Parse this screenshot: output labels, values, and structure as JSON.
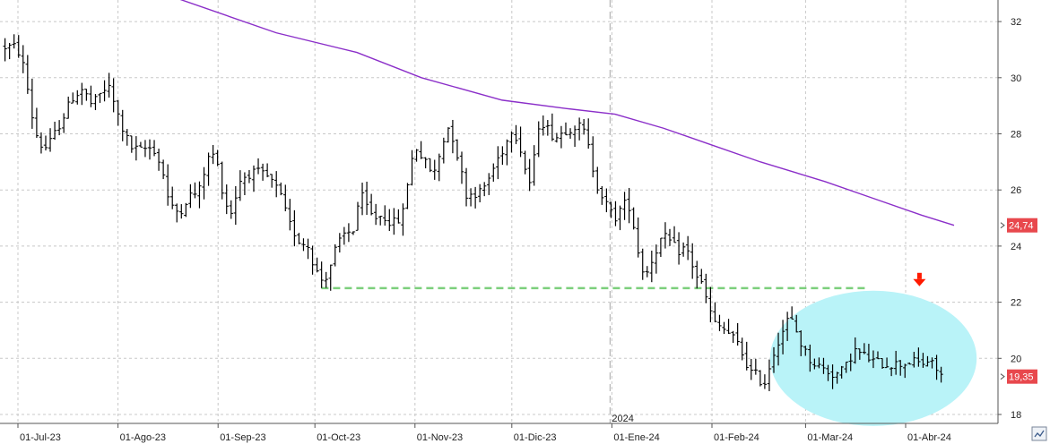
{
  "chart_data": {
    "type": "bar",
    "subtype": "ohlc-price-bars",
    "title": "",
    "xlabel": "",
    "ylabel": "",
    "ylim": [
      17.6,
      33.5
    ],
    "y_ticks": [
      18,
      20,
      22,
      24,
      26,
      28,
      30,
      32
    ],
    "x_ticks": [
      {
        "day": 0,
        "label": "01-Jul-23"
      },
      {
        "day": 31,
        "label": "01-Ago-23"
      },
      {
        "day": 62,
        "label": "01-Sep-23"
      },
      {
        "day": 92,
        "label": "01-Oct-23"
      },
      {
        "day": 123,
        "label": "01-Nov-23"
      },
      {
        "day": 153,
        "label": "01-Dic-23"
      },
      {
        "day": 184,
        "label": "01-Ene-24"
      },
      {
        "day": 215,
        "label": "01-Feb-24"
      },
      {
        "day": 244,
        "label": "01-Mar-24"
      },
      {
        "day": 275,
        "label": "01-Abr-24"
      }
    ],
    "year_marker": {
      "day": 184,
      "label": "2024"
    },
    "x_range_days": [
      -5,
      293
    ],
    "price_anchors": [
      [
        -4,
        31.1
      ],
      [
        -1,
        31.1
      ],
      [
        1,
        30.8
      ],
      [
        3,
        29.6
      ],
      [
        5,
        28.2
      ],
      [
        7,
        27.6
      ],
      [
        9,
        27.5
      ],
      [
        11,
        27.9
      ],
      [
        14,
        28.6
      ],
      [
        17,
        29.3
      ],
      [
        20,
        29.6
      ],
      [
        23,
        29.0
      ],
      [
        26,
        29.5
      ],
      [
        28,
        29.7
      ],
      [
        30,
        29.0
      ],
      [
        32,
        28.3
      ],
      [
        35,
        27.5
      ],
      [
        38,
        27.4
      ],
      [
        40,
        27.5
      ],
      [
        42,
        27.5
      ],
      [
        45,
        26.6
      ],
      [
        47,
        25.4
      ],
      [
        50,
        25.2
      ],
      [
        53,
        25.8
      ],
      [
        56,
        25.9
      ],
      [
        58,
        26.8
      ],
      [
        60,
        27.4
      ],
      [
        62,
        26.8
      ],
      [
        64,
        25.6
      ],
      [
        66,
        25.2
      ],
      [
        69,
        26.4
      ],
      [
        72,
        26.6
      ],
      [
        75,
        26.6
      ],
      [
        78,
        26.4
      ],
      [
        81,
        25.9
      ],
      [
        84,
        24.8
      ],
      [
        87,
        24.2
      ],
      [
        90,
        24.0
      ],
      [
        92,
        23.2
      ],
      [
        94,
        22.8
      ],
      [
        96,
        23.0
      ],
      [
        98,
        23.8
      ],
      [
        101,
        24.4
      ],
      [
        104,
        24.6
      ],
      [
        106,
        25.9
      ],
      [
        108,
        25.4
      ],
      [
        110,
        25.0
      ],
      [
        113,
        25.1
      ],
      [
        116,
        24.8
      ],
      [
        119,
        25.0
      ],
      [
        121,
        26.5
      ],
      [
        123,
        27.6
      ],
      [
        125,
        27.2
      ],
      [
        127,
        26.8
      ],
      [
        129,
        26.6
      ],
      [
        131,
        27.4
      ],
      [
        133,
        28.3
      ],
      [
        135,
        27.8
      ],
      [
        137,
        26.8
      ],
      [
        139,
        25.8
      ],
      [
        141,
        25.9
      ],
      [
        143,
        25.9
      ],
      [
        145,
        26.2
      ],
      [
        147,
        26.7
      ],
      [
        149,
        27.2
      ],
      [
        151,
        27.6
      ],
      [
        153,
        28.2
      ],
      [
        155,
        27.8
      ],
      [
        157,
        26.8
      ],
      [
        159,
        26.1
      ],
      [
        161,
        28.3
      ],
      [
        163,
        28.4
      ],
      [
        165,
        28.0
      ],
      [
        167,
        27.9
      ],
      [
        169,
        28.1
      ],
      [
        171,
        28.2
      ],
      [
        173,
        28.3
      ],
      [
        175,
        28.2
      ],
      [
        177,
        27.4
      ],
      [
        179,
        26.3
      ],
      [
        181,
        25.8
      ],
      [
        183,
        25.3
      ],
      [
        185,
        25.0
      ],
      [
        187,
        25.4
      ],
      [
        189,
        25.6
      ],
      [
        191,
        24.6
      ],
      [
        193,
        23.2
      ],
      [
        195,
        23.1
      ],
      [
        197,
        23.7
      ],
      [
        199,
        24.2
      ],
      [
        201,
        24.3
      ],
      [
        203,
        24.0
      ],
      [
        205,
        23.8
      ],
      [
        207,
        24.0
      ],
      [
        208,
        23.6
      ],
      [
        210,
        23.0
      ],
      [
        212,
        22.6
      ],
      [
        214,
        21.8
      ],
      [
        216,
        21.2
      ],
      [
        218,
        21.1
      ],
      [
        221,
        20.8
      ],
      [
        223,
        20.5
      ],
      [
        225,
        20.0
      ],
      [
        227,
        19.5
      ],
      [
        229,
        19.4
      ],
      [
        231,
        19.0
      ],
      [
        233,
        19.8
      ],
      [
        235,
        20.5
      ],
      [
        237,
        21.0
      ],
      [
        239,
        21.5
      ],
      [
        241,
        21.0
      ],
      [
        243,
        20.4
      ],
      [
        245,
        20.0
      ],
      [
        247,
        19.8
      ],
      [
        250,
        19.6
      ],
      [
        253,
        19.4
      ],
      [
        256,
        19.6
      ],
      [
        259,
        20.3
      ],
      [
        262,
        20.1
      ],
      [
        265,
        19.9
      ],
      [
        268,
        19.8
      ],
      [
        271,
        19.8
      ],
      [
        274,
        19.8
      ],
      [
        277,
        19.9
      ],
      [
        280,
        19.8
      ],
      [
        282,
        19.9
      ],
      [
        284,
        19.7
      ],
      [
        286,
        19.4
      ]
    ],
    "bar_count": 208,
    "moving_average": {
      "points": [
        [
          50,
          32.8
        ],
        [
          80,
          31.6
        ],
        [
          105,
          30.9
        ],
        [
          125,
          30.0
        ],
        [
          150,
          29.2
        ],
        [
          170,
          28.9
        ],
        [
          185,
          28.7
        ],
        [
          200,
          28.2
        ],
        [
          215,
          27.6
        ],
        [
          230,
          27.0
        ],
        [
          250,
          26.3
        ],
        [
          265,
          25.7
        ],
        [
          280,
          25.1
        ],
        [
          290,
          24.74
        ]
      ],
      "color": "#8b2fc9"
    },
    "last_ma": {
      "value": 24.74,
      "label": "24,74"
    },
    "last_price": {
      "value": 19.35,
      "label": "19,35"
    },
    "support_line": {
      "price": 22.5,
      "from_day": 94,
      "to_day": 243,
      "color": "#7ccf7c"
    },
    "ellipse": {
      "center_day": 265,
      "center_price": 20.0,
      "radius_days": 27,
      "radius_price": 2.25,
      "color": "#b9f3f8"
    },
    "down_arrow": {
      "day": 279,
      "price": 22.6,
      "color": "#ff1a00"
    },
    "bar_color": "#000000",
    "grid": true,
    "grid_color": "#c8c8c8",
    "y_axis_side": "right",
    "badge_color": "#e8484d"
  }
}
